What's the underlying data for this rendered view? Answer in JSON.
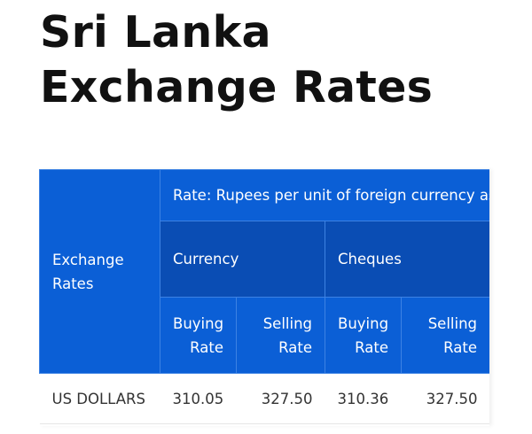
{
  "header": {
    "title": "Sri Lanka Exchange Rates"
  },
  "table": {
    "corner": "Exchange Rates",
    "caption": "Rate: Rupees per unit of foreign currency as a",
    "groups": [
      "Currency",
      "Cheques"
    ],
    "columns": [
      "Buying Rate",
      "Selling Rate",
      "Buying Rate",
      "Selling Rate"
    ],
    "rows": [
      [
        "US DOLLARS",
        "310.05",
        "327.50",
        "310.36",
        "327.50"
      ]
    ]
  }
}
